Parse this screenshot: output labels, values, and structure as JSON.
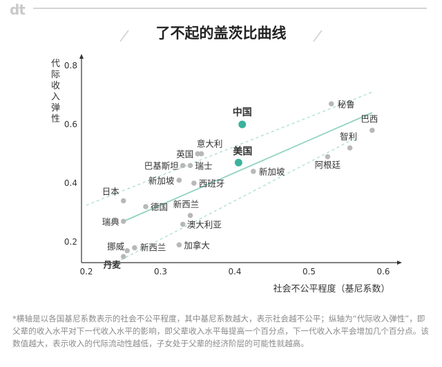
{
  "logo_text": "dt",
  "chart_data": {
    "type": "scatter",
    "title": "了不起的盖茨比曲线",
    "xlabel": "社会不公平程度（基尼系数）",
    "ylabel": "代际收入弹性",
    "xlim": [
      0.2,
      0.6
    ],
    "ylim": [
      0.15,
      0.8
    ],
    "xticks": [
      "0.2",
      "0.3",
      "0.4",
      "0.5",
      "0.6"
    ],
    "yticks": [
      "0.2",
      "0.4",
      "0.6",
      "0.8"
    ],
    "grid": false,
    "trend_line": {
      "x": [
        0.25,
        0.585
      ],
      "y": [
        0.27,
        0.64
      ]
    },
    "band_upper": {
      "x": [
        0.2,
        0.585
      ],
      "y": [
        0.325,
        0.71
      ]
    },
    "band_lower": {
      "x": [
        0.24,
        0.56
      ],
      "y": [
        0.13,
        0.55
      ]
    },
    "points": [
      {
        "name": "丹麦",
        "x": 0.25,
        "y": 0.15
      },
      {
        "name": "挪威",
        "x": 0.255,
        "y": 0.17
      },
      {
        "name": "新西兰",
        "x": 0.265,
        "y": 0.18
      },
      {
        "name": "瑞典",
        "x": 0.25,
        "y": 0.27
      },
      {
        "name": "日本",
        "x": 0.25,
        "y": 0.34
      },
      {
        "name": "德国",
        "x": 0.28,
        "y": 0.32
      },
      {
        "name": "加拿大",
        "x": 0.325,
        "y": 0.19
      },
      {
        "name": "新西兰",
        "x": 0.34,
        "y": 0.29
      },
      {
        "name": "澳大利亚",
        "x": 0.33,
        "y": 0.26
      },
      {
        "name": "新加坡",
        "x": 0.325,
        "y": 0.41
      },
      {
        "name": "西班牙",
        "x": 0.345,
        "y": 0.4
      },
      {
        "name": "巴基斯坦",
        "x": 0.33,
        "y": 0.46
      },
      {
        "name": "瑞士",
        "x": 0.34,
        "y": 0.46
      },
      {
        "name": "英国",
        "x": 0.35,
        "y": 0.5
      },
      {
        "name": "意大利",
        "x": 0.355,
        "y": 0.5
      },
      {
        "name": "中国",
        "x": 0.41,
        "y": 0.6,
        "highlight": true
      },
      {
        "name": "美国",
        "x": 0.405,
        "y": 0.47,
        "highlight": true
      },
      {
        "name": "新加坡",
        "x": 0.425,
        "y": 0.44
      },
      {
        "name": "阿根廷",
        "x": 0.525,
        "y": 0.49
      },
      {
        "name": "智利",
        "x": 0.555,
        "y": 0.52
      },
      {
        "name": "秘鲁",
        "x": 0.53,
        "y": 0.67
      },
      {
        "name": "巴西",
        "x": 0.585,
        "y": 0.58
      }
    ],
    "colors": {
      "highlight": "#3bb29d",
      "point": "#b8b8b8",
      "trend": "#8fd2c1",
      "band": "#a9ddd0",
      "axis": "#333333"
    }
  },
  "footnote": "*横轴是以各国基尼系数表示的社会不公平程度，其中基尼系数越大，表示社会越不公平；纵轴为“代际收入弹性”，即父辈的收入水平对下一代收入水平的影响，即父辈收入水平每提高一个百分点，下一代收入水平会增加几个百分点。该数值越大，表示收入的代际流动性越低，子女处于父辈的经济阶层的可能性就越高。"
}
